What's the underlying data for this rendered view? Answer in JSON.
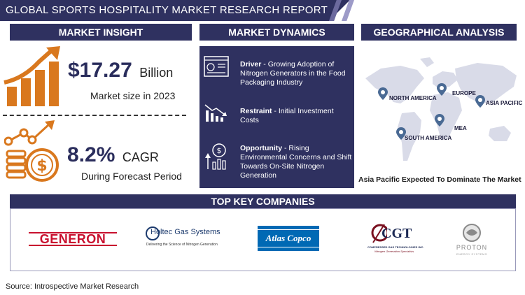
{
  "header": {
    "title": "GLOBAL SPORTS HOSPITALITY MARKET RESEARCH REPORT"
  },
  "sections": {
    "market_insight": "MARKET INSIGHT",
    "market_dynamics": "MARKET DYNAMICS",
    "geographical_analysis": "GEOGRAPHICAL ANALYSIS",
    "top_key_companies": "TOP KEY COMPANIES"
  },
  "insight": {
    "market_size_value": "$17.27",
    "market_size_unit": "Billion",
    "market_size_label": "Market size in 2023",
    "cagr_value": "8.2%",
    "cagr_unit": "CAGR",
    "cagr_label": "During Forecast Period"
  },
  "dynamics": {
    "driver_title": "Driver",
    "driver_text": " - Growing Adoption of Nitrogen Generators in the Food Packaging Industry",
    "restraint_title": "Restraint",
    "restraint_text": " - Initial Investment Costs",
    "opportunity_title": "Opportunity",
    "opportunity_text": " - Rising Environmental Concerns and Shift Towards On-Site Nitrogen Generation"
  },
  "geography": {
    "regions": [
      "NORTH AMERICA",
      "EUROPE",
      "ASIA PACIFIC",
      "MEA",
      "SOUTH AMERICA"
    ],
    "caption": "Asia Pacific Expected To Dominate The Market"
  },
  "companies": {
    "generon": "GENERON",
    "holtec_name": "Holtec Gas Systems",
    "holtec_tagline": "Delivering the Science of Nitrogen Generation",
    "atlas": "Atlas Copco",
    "cgt": "CGT",
    "cgt_full": "COMPRESSED GAS TECHNOLOGIES INC.",
    "cgt_tagline": "Nitrogen Generation Specialists",
    "proton": "PROTON",
    "proton_tagline": "ENERGY SYSTEMS"
  },
  "footer": {
    "source": "Source: Introspective Market Research"
  },
  "colors": {
    "navy": "#2f3160",
    "accent_orange": "#d9781e",
    "generon_red": "#c8102e",
    "atlas_blue": "#0069b4"
  }
}
